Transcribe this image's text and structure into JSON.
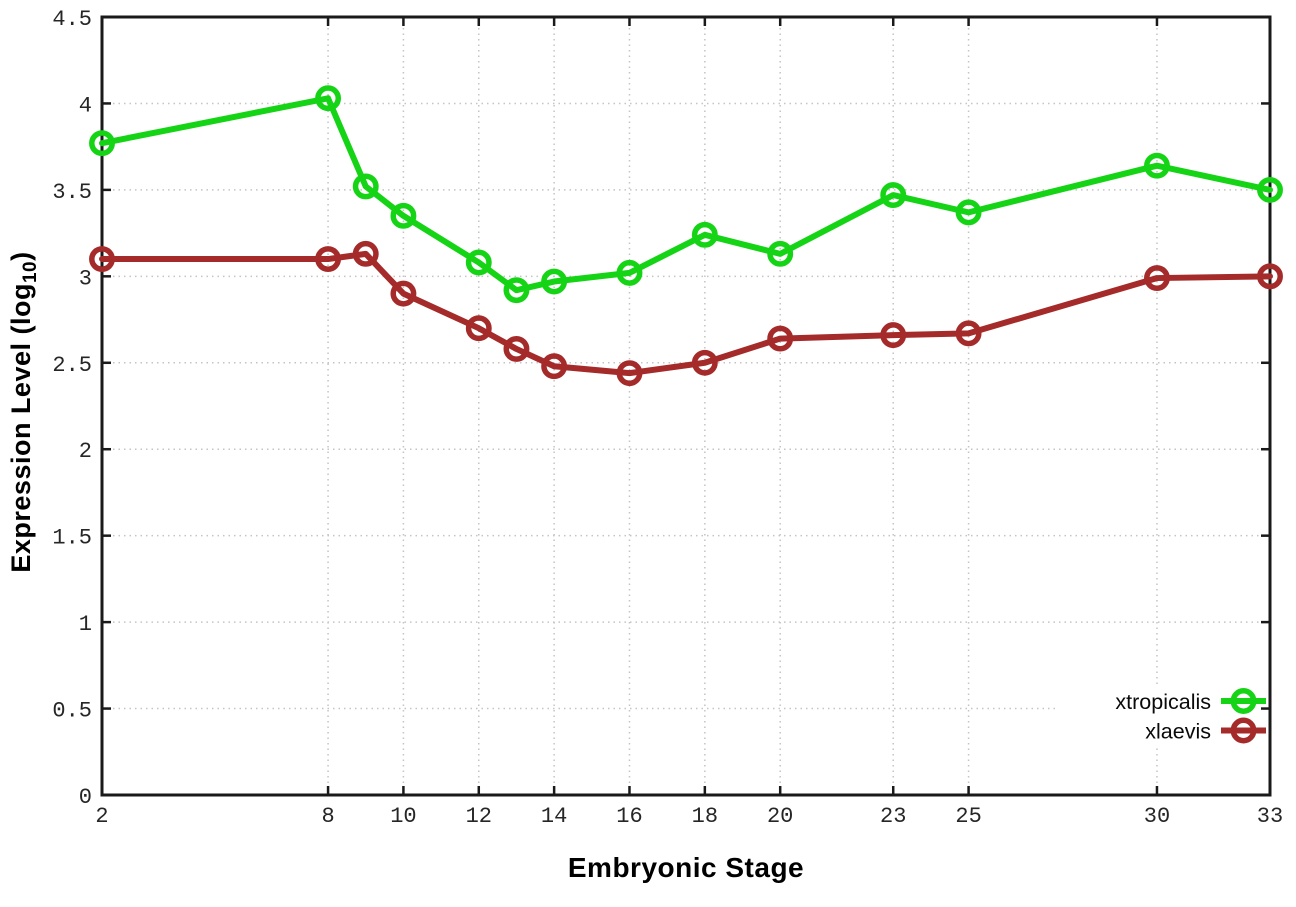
{
  "chart_data": {
    "type": "line",
    "title": "",
    "xlabel": "Embryonic Stage",
    "ylabel": "Expression Level (log10)",
    "ylabel_parts": {
      "prefix": "Expression Level (log",
      "subscript": "10",
      "suffix": ")"
    },
    "x": [
      2,
      8,
      9,
      10,
      12,
      13,
      14,
      16,
      18,
      20,
      23,
      25,
      30,
      33
    ],
    "series": [
      {
        "name": "xtropicalis",
        "color": "#15d415",
        "values": [
          3.77,
          4.03,
          3.52,
          3.35,
          3.08,
          2.92,
          2.97,
          3.02,
          3.24,
          3.13,
          3.47,
          3.37,
          3.64,
          3.5
        ]
      },
      {
        "name": "xlaevis",
        "color": "#a52a2a",
        "values": [
          3.1,
          3.1,
          3.13,
          2.9,
          2.7,
          2.58,
          2.48,
          2.44,
          2.5,
          2.64,
          2.66,
          2.67,
          2.99,
          3.0
        ]
      }
    ],
    "xlim": [
      2,
      33
    ],
    "ylim": [
      0,
      4.5
    ],
    "xticks": [
      2,
      8,
      10,
      12,
      14,
      16,
      18,
      20,
      23,
      25,
      30,
      33
    ],
    "xtick_labels": [
      "2",
      "8",
      "10",
      "12",
      "14",
      "16",
      "18",
      "20",
      "23",
      "25",
      "30",
      "33"
    ],
    "yticks": [
      0,
      0.5,
      1,
      1.5,
      2,
      2.5,
      3,
      3.5,
      4,
      4.5
    ],
    "ytick_labels": [
      "0",
      "0.5",
      "1",
      "1.5",
      "2",
      "2.5",
      "3",
      "3.5",
      "4",
      "4.5"
    ],
    "grid": "dotted",
    "legend_position": "bottom-right",
    "marker": "open-circle"
  },
  "styles": {
    "background": "#ffffff",
    "grid_color": "#c4c4c4",
    "axis_color": "#1a1a1a",
    "tick_label_color": "#262626",
    "legend_text_color": "#0a0a0a"
  }
}
